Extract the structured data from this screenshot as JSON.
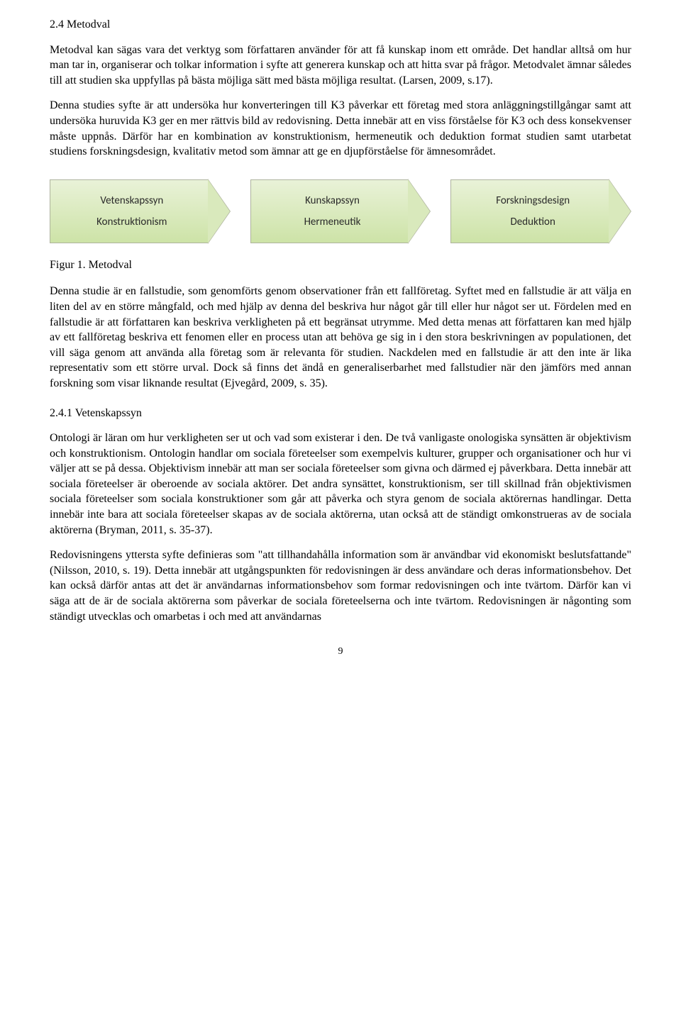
{
  "section": {
    "heading": "2.4 Metodval",
    "p1": "Metodval kan sägas vara det verktyg som författaren använder för att få kunskap inom ett område. Det handlar alltså om hur man tar in, organiserar och tolkar information i syfte att generera kunskap och att hitta svar på frågor. Metodvalet ämnar således till att studien ska uppfyllas på bästa möjliga sätt med bästa möjliga resultat. (Larsen, 2009, s.17).",
    "p2": "Denna studies syfte är att undersöka hur konverteringen till K3 påverkar ett företag med stora anläggningstillgångar samt att undersöka huruvida K3 ger en mer rättvis bild av redovisning. Detta innebär att en viss förståelse för K3 och dess konsekvenser måste uppnås. Därför har en kombination av konstruktionism, hermeneutik och deduktion format studien samt utarbetat studiens forskningsdesign, kvalitativ metod som ämnar att ge en djupförståelse för ämnesområdet."
  },
  "arrows": {
    "colors": {
      "gradient_top": "#e9f2d8",
      "gradient_bottom": "#cde3a7",
      "border": "#aeb39e",
      "head_fill": "#d9e9bc"
    },
    "items": [
      {
        "line1": "Vetenskapssyn",
        "line2": "Konstruktionism"
      },
      {
        "line1": "Kunskapssyn",
        "line2": "Hermeneutik"
      },
      {
        "line1": "Forskningsdesign",
        "line2": "Deduktion"
      }
    ]
  },
  "figure_caption": "Figur 1. Metodval",
  "after_figure": {
    "p1": "Denna studie är en fallstudie, som genomförts genom observationer från ett fallföretag. Syftet med en fallstudie är att välja en liten del av en större mångfald, och med hjälp av denna del beskriva hur något går till eller hur något ser ut. Fördelen med en fallstudie är att författaren kan beskriva verkligheten på ett begränsat utrymme. Med detta menas att författaren kan med hjälp av ett fallföretag beskriva ett fenomen eller en process utan att behöva ge sig in i den stora beskrivningen av populationen, det vill säga genom att använda alla företag som är relevanta för studien. Nackdelen med en fallstudie är att den inte är lika representativ som ett större urval. Dock så finns det ändå en generaliserbarhet med fallstudier när den jämförs med annan forskning som visar liknande resultat (Ejvegård, 2009, s. 35)."
  },
  "subsection": {
    "heading": "2.4.1 Vetenskapssyn",
    "p1": "Ontologi är läran om hur verkligheten ser ut och vad som existerar i den. De två vanligaste onologiska synsätten är objektivism och konstruktionism. Ontologin handlar om sociala företeelser som exempelvis kulturer, grupper och organisationer och hur vi väljer att se på dessa. Objektivism innebär att man ser sociala företeelser som givna och därmed ej påverkbara. Detta innebär att sociala företeelser är oberoende av sociala aktörer. Det andra synsättet, konstruktionism, ser till skillnad från objektivismen sociala företeelser som sociala konstruktioner som går att påverka och styra genom de sociala aktörernas handlingar. Detta innebär inte bara att sociala företeelser skapas av de sociala aktörerna, utan också att de ständigt omkonstrueras av de sociala aktörerna (Bryman, 2011, s. 35-37).",
    "p2": "Redovisningens yttersta syfte definieras som \"att tillhandahålla information som är användbar vid ekonomiskt beslutsfattande\" (Nilsson, 2010, s. 19). Detta innebär att utgångspunkten för redovisningen är dess användare och deras informationsbehov. Det kan också därför antas att det är användarnas informationsbehov som formar redovisningen och inte tvärtom. Därför kan vi säga att de är de sociala aktörerna som påverkar de sociala företeelserna och inte tvärtom. Redovisningen är någonting som ständigt utvecklas och omarbetas i och med att användarnas"
  },
  "page_number": "9"
}
